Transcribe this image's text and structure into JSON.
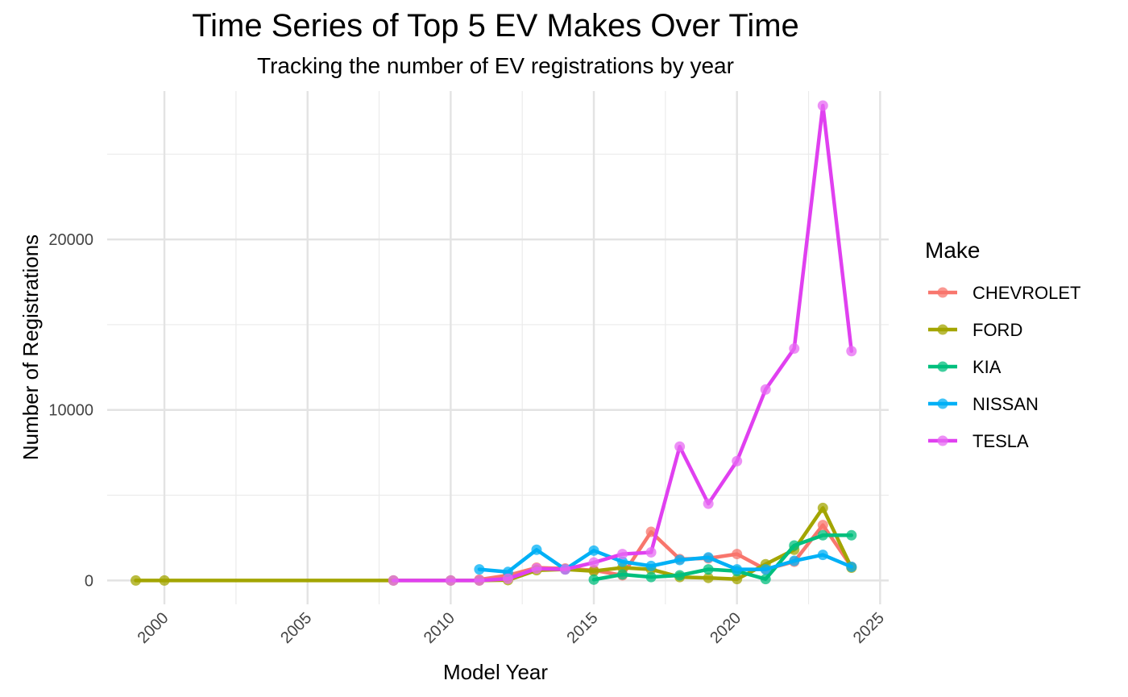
{
  "chart_data": {
    "type": "line",
    "title": "Time Series of Top 5 EV Makes Over Time",
    "subtitle": "Tracking the number of EV registrations by year",
    "xlabel": "Model Year",
    "ylabel": "Number of Registrations",
    "xlim": [
      1998,
      2025.3
    ],
    "ylim": [
      -1400,
      28700
    ],
    "x_ticks": [
      2000,
      2005,
      2010,
      2015,
      2020,
      2025
    ],
    "y_ticks": [
      0,
      10000,
      20000
    ],
    "grid": true,
    "legend_title": "Make",
    "legend_position": "right",
    "series": [
      {
        "name": "CHEVROLET",
        "color": "#F8766D",
        "points": [
          [
            2011,
            50
          ],
          [
            2012,
            300
          ],
          [
            2013,
            750
          ],
          [
            2014,
            700
          ],
          [
            2015,
            600
          ],
          [
            2016,
            300
          ],
          [
            2017,
            2850
          ],
          [
            2018,
            1250
          ],
          [
            2019,
            1300
          ],
          [
            2020,
            1550
          ],
          [
            2021,
            650
          ],
          [
            2022,
            1100
          ],
          [
            2023,
            3250
          ],
          [
            2024,
            800
          ]
        ]
      },
      {
        "name": "FORD",
        "color": "#A3A500",
        "points": [
          [
            1999,
            0
          ],
          [
            2000,
            0
          ],
          [
            2008,
            0
          ],
          [
            2010,
            0
          ],
          [
            2011,
            0
          ],
          [
            2012,
            20
          ],
          [
            2013,
            600
          ],
          [
            2014,
            650
          ],
          [
            2015,
            550
          ],
          [
            2016,
            750
          ],
          [
            2017,
            650
          ],
          [
            2018,
            200
          ],
          [
            2019,
            150
          ],
          [
            2020,
            80
          ],
          [
            2021,
            950
          ],
          [
            2022,
            1800
          ],
          [
            2023,
            4250
          ],
          [
            2024,
            750
          ]
        ]
      },
      {
        "name": "KIA",
        "color": "#00BF7D",
        "points": [
          [
            2015,
            50
          ],
          [
            2016,
            350
          ],
          [
            2017,
            200
          ],
          [
            2018,
            300
          ],
          [
            2019,
            650
          ],
          [
            2020,
            550
          ],
          [
            2021,
            80
          ],
          [
            2022,
            2050
          ],
          [
            2023,
            2650
          ],
          [
            2024,
            2650
          ]
        ]
      },
      {
        "name": "NISSAN",
        "color": "#00B0F6",
        "points": [
          [
            2011,
            650
          ],
          [
            2012,
            500
          ],
          [
            2013,
            1800
          ],
          [
            2014,
            650
          ],
          [
            2015,
            1750
          ],
          [
            2016,
            1100
          ],
          [
            2017,
            850
          ],
          [
            2018,
            1200
          ],
          [
            2019,
            1350
          ],
          [
            2020,
            650
          ],
          [
            2021,
            650
          ],
          [
            2022,
            1150
          ],
          [
            2023,
            1500
          ],
          [
            2024,
            800
          ]
        ]
      },
      {
        "name": "TESLA",
        "color": "#E76BF3",
        "line_color": "#E040F0",
        "points": [
          [
            2008,
            0
          ],
          [
            2010,
            0
          ],
          [
            2011,
            0
          ],
          [
            2012,
            100
          ],
          [
            2013,
            700
          ],
          [
            2014,
            650
          ],
          [
            2015,
            1050
          ],
          [
            2016,
            1550
          ],
          [
            2017,
            1650
          ],
          [
            2018,
            7850
          ],
          [
            2019,
            4500
          ],
          [
            2020,
            7000
          ],
          [
            2021,
            11200
          ],
          [
            2022,
            13600
          ],
          [
            2023,
            27850
          ],
          [
            2024,
            13450
          ]
        ]
      }
    ]
  }
}
